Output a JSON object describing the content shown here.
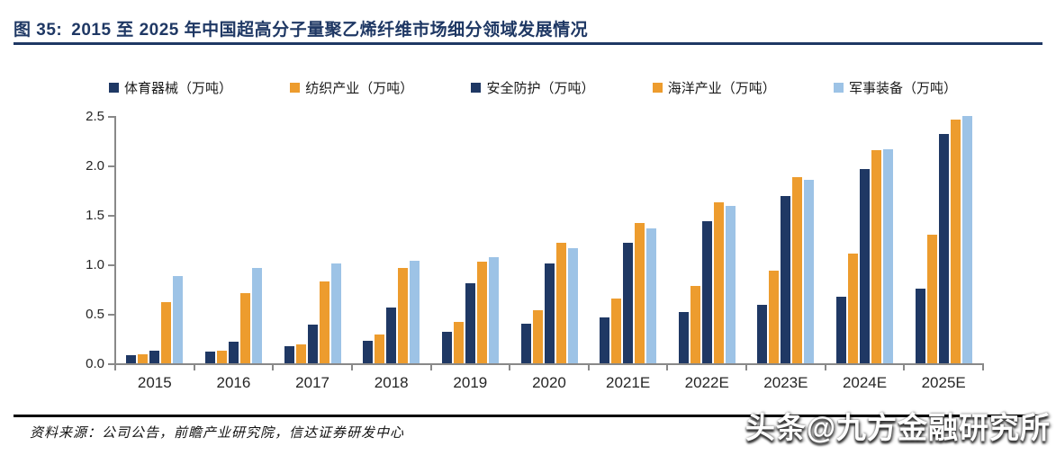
{
  "figure": {
    "label": "图 35:",
    "title": "2015 至 2025 年中国超高分子量聚乙烯纤维市场细分领域发展情况",
    "title_color": "#1F3864"
  },
  "source": {
    "text": "资料来源：公司公告，前瞻产业研究院，信达证券研发中心"
  },
  "watermark": {
    "text": "头条@九方金融研究所"
  },
  "colors": {
    "navy": "#1F3864",
    "orange": "#ED9C2E",
    "light_blue": "#9DC3E6",
    "axis": "#898989"
  },
  "chart_data": {
    "type": "bar",
    "title": "",
    "xlabel": "",
    "ylabel": "",
    "ylim": [
      0,
      2.5
    ],
    "ytick_labels": [
      "0.0",
      "0.5",
      "1.0",
      "1.5",
      "2.0",
      "2.5"
    ],
    "yticks": [
      0,
      0.5,
      1,
      1.5,
      2,
      2.5
    ],
    "grid": false,
    "legend_position": "top",
    "categories": [
      "2015",
      "2016",
      "2017",
      "2018",
      "2019",
      "2020",
      "2021E",
      "2022E",
      "2023E",
      "2024E",
      "2025E"
    ],
    "series": [
      {
        "name": "体育器械（万吨）",
        "color": "#1F3864",
        "values": [
          0.08,
          0.12,
          0.17,
          0.23,
          0.32,
          0.4,
          0.46,
          0.52,
          0.59,
          0.67,
          0.75
        ]
      },
      {
        "name": "纺织产业（万吨）",
        "color": "#ED9C2E",
        "values": [
          0.09,
          0.13,
          0.19,
          0.29,
          0.42,
          0.54,
          0.65,
          0.78,
          0.94,
          1.11,
          1.3
        ]
      },
      {
        "name": "安全防护（万吨）",
        "color": "#1F3864",
        "values": [
          0.13,
          0.22,
          0.39,
          0.56,
          0.81,
          1.01,
          1.22,
          1.44,
          1.69,
          1.96,
          2.32
        ]
      },
      {
        "name": "海洋产业（万吨）",
        "color": "#ED9C2E",
        "values": [
          0.62,
          0.71,
          0.83,
          0.96,
          1.03,
          1.22,
          1.42,
          1.63,
          1.88,
          2.15,
          2.46
        ]
      },
      {
        "name": "军事装备（万吨）",
        "color": "#9DC3E6",
        "values": [
          0.88,
          0.96,
          1.01,
          1.04,
          1.07,
          1.16,
          1.36,
          1.59,
          1.85,
          2.16,
          2.5
        ]
      }
    ]
  }
}
